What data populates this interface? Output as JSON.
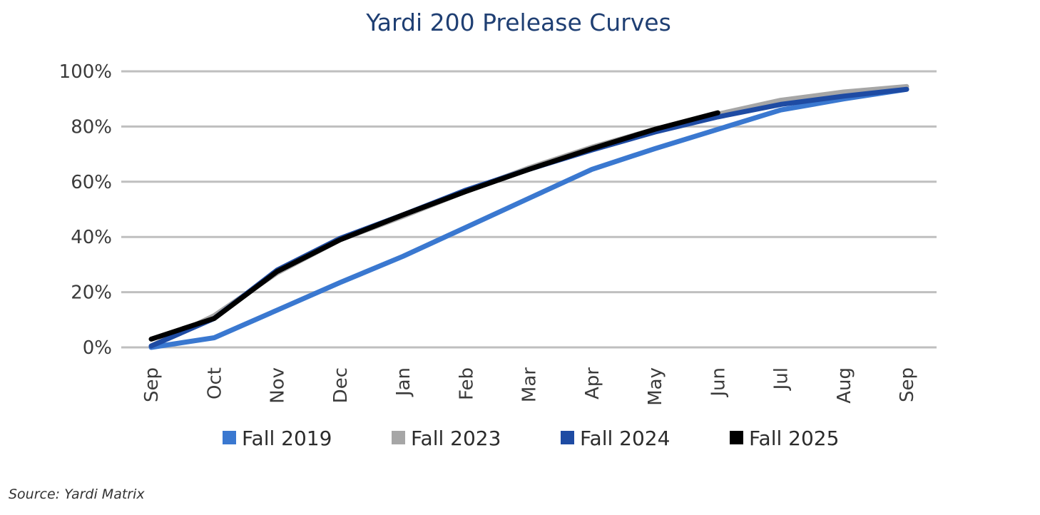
{
  "chart_data": {
    "type": "line",
    "title": "Yardi 200 Prelease Curves",
    "xlabel": "",
    "ylabel": "",
    "categories": [
      "Sep",
      "Oct",
      "Nov",
      "Dec",
      "Jan",
      "Feb",
      "Mar",
      "Apr",
      "May",
      "Jun",
      "Jul",
      "Aug",
      "Sep"
    ],
    "ylim": [
      0,
      100
    ],
    "yticks": [
      0,
      20,
      40,
      60,
      80,
      100
    ],
    "ytick_labels": [
      "0%",
      "20%",
      "40%",
      "60%",
      "80%",
      "100%"
    ],
    "grid": true,
    "legend": "bottom",
    "series": [
      {
        "name": "Fall 2019",
        "color": "#3a78d0",
        "values": [
          0,
          3.5,
          13.5,
          23.5,
          33,
          43.5,
          54,
          64.5,
          72,
          79,
          86,
          90,
          93.5
        ]
      },
      {
        "name": "Fall 2023",
        "color": "#a6a6a6",
        "values": [
          0.5,
          11.5,
          27,
          39,
          47.5,
          56.5,
          65,
          72.5,
          79,
          84.5,
          89.5,
          92.5,
          94.5
        ]
      },
      {
        "name": "Fall 2024",
        "color": "#1e4ba3",
        "values": [
          0.5,
          10.5,
          28,
          39.5,
          48,
          57,
          64.5,
          71.5,
          78,
          83.5,
          88,
          91,
          93.5
        ]
      },
      {
        "name": "Fall 2025",
        "color": "#000000",
        "values": [
          3,
          10.5,
          27.5,
          39,
          48,
          56.5,
          64.5,
          72,
          79,
          85,
          null,
          null,
          null
        ]
      }
    ]
  },
  "source_text": "Source: Yardi Matrix",
  "gridline_color": "#bfbfbf"
}
